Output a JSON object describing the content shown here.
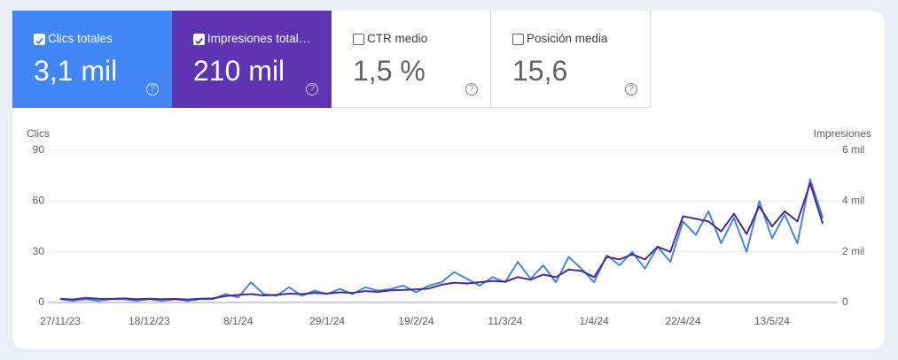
{
  "cards": [
    {
      "label": "Clics totales",
      "value": "3,1 mil",
      "checked": true,
      "color": "#4285f4"
    },
    {
      "label": "Impresiones total…",
      "value": "210 mil",
      "checked": true,
      "color": "#5e35b1"
    },
    {
      "label": "CTR medio",
      "value": "1,5 %",
      "checked": false,
      "color": "#ffffff"
    },
    {
      "label": "Posición media",
      "value": "15,6",
      "checked": false,
      "color": "#ffffff"
    }
  ],
  "chart_data": {
    "type": "line",
    "y_label": "Clics",
    "y2_label": "Impresiones",
    "x": [
      "27/11/23",
      "30/11/23",
      "3/12/23",
      "6/12/23",
      "9/12/23",
      "12/12/23",
      "15/12/23",
      "18/12/23",
      "21/12/23",
      "24/12/23",
      "27/12/23",
      "30/12/23",
      "2/1/24",
      "5/1/24",
      "8/1/24",
      "11/1/24",
      "14/1/24",
      "17/1/24",
      "20/1/24",
      "23/1/24",
      "26/1/24",
      "29/1/24",
      "1/2/24",
      "4/2/24",
      "7/2/24",
      "10/2/24",
      "13/2/24",
      "16/2/24",
      "19/2/24",
      "22/2/24",
      "25/2/24",
      "28/2/24",
      "2/3/24",
      "5/3/24",
      "8/3/24",
      "11/3/24",
      "14/3/24",
      "17/3/24",
      "20/3/24",
      "23/3/24",
      "26/3/24",
      "29/3/24",
      "1/4/24",
      "4/4/24",
      "7/4/24",
      "10/4/24",
      "13/4/24",
      "16/4/24",
      "19/4/24",
      "22/4/24",
      "25/4/24",
      "28/4/24",
      "1/5/24",
      "4/5/24",
      "7/5/24",
      "10/5/24",
      "13/5/24",
      "16/5/24",
      "19/5/24",
      "22/5/24",
      "25/5/24"
    ],
    "xlim": [
      "27/11/23",
      "26/5/24"
    ],
    "xticks": [
      "27/11/23",
      "18/12/23",
      "8/1/24",
      "29/1/24",
      "19/2/24",
      "11/3/24",
      "1/4/24",
      "22/4/24",
      "13/5/24"
    ],
    "ylim": [
      0,
      90
    ],
    "yticks": [
      0,
      30,
      60,
      90
    ],
    "y2lim": [
      0,
      6000
    ],
    "y2ticks": [
      0,
      {
        "value": 2000,
        "label": "2 mil"
      },
      {
        "value": 4000,
        "label": "4 mil"
      },
      {
        "value": 6000,
        "label": "6 mil"
      }
    ],
    "grid": true,
    "series": [
      {
        "name": "Clics",
        "color": "#4a86d8",
        "values": [
          2,
          1,
          2,
          1,
          2,
          2,
          1,
          2,
          1,
          2,
          1,
          2,
          2,
          5,
          3,
          12,
          5,
          4,
          9,
          4,
          7,
          5,
          8,
          5,
          9,
          7,
          8,
          10,
          6,
          10,
          12,
          18,
          14,
          10,
          15,
          12,
          24,
          14,
          22,
          12,
          27,
          20,
          12,
          28,
          22,
          30,
          20,
          33,
          24,
          48,
          40,
          54,
          35,
          50,
          30,
          60,
          38,
          52,
          35,
          73,
          50
        ]
      },
      {
        "name": "Impresiones",
        "color": "#4b2a8f",
        "axis": "y2",
        "values": [
          150,
          120,
          180,
          150,
          140,
          160,
          130,
          150,
          130,
          140,
          120,
          150,
          160,
          250,
          300,
          330,
          280,
          300,
          350,
          330,
          380,
          350,
          400,
          380,
          450,
          420,
          480,
          500,
          520,
          550,
          700,
          780,
          750,
          800,
          850,
          820,
          1000,
          900,
          1100,
          1000,
          1300,
          1250,
          1000,
          1800,
          1700,
          1900,
          1700,
          2200,
          2000,
          3400,
          3300,
          3200,
          2800,
          3500,
          2700,
          3800,
          3000,
          3600,
          3200,
          4700,
          3100
        ]
      }
    ]
  }
}
